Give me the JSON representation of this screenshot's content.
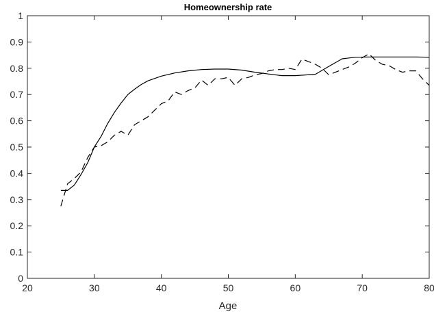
{
  "chart_data": {
    "type": "line",
    "title": "Homeownership rate",
    "xlabel": "Age",
    "ylabel": "",
    "xlim": [
      20,
      80
    ],
    "ylim": [
      0,
      1
    ],
    "xticks": [
      "20",
      "30",
      "40",
      "50",
      "60",
      "70",
      "80"
    ],
    "yticks": [
      "0",
      "0.1",
      "0.2",
      "0.3",
      "0.4",
      "0.5",
      "0.6",
      "0.7",
      "0.8",
      "0.9",
      "1"
    ],
    "grid": false,
    "legend": "none",
    "series": [
      {
        "style": "solid",
        "color": "#000000",
        "x": [
          25,
          26,
          27,
          28,
          29,
          30,
          31,
          32,
          33,
          34,
          35,
          36,
          37,
          38,
          40,
          42,
          44,
          46,
          48,
          50,
          52,
          54,
          56,
          58,
          60,
          63,
          65,
          67,
          69,
          71,
          73,
          75,
          78,
          80
        ],
        "y": [
          0.335,
          0.335,
          0.355,
          0.395,
          0.44,
          0.5,
          0.54,
          0.59,
          0.632,
          0.668,
          0.7,
          0.72,
          0.738,
          0.752,
          0.77,
          0.782,
          0.79,
          0.795,
          0.797,
          0.797,
          0.793,
          0.785,
          0.778,
          0.772,
          0.772,
          0.777,
          0.807,
          0.836,
          0.842,
          0.843,
          0.843,
          0.843,
          0.843,
          0.842
        ]
      },
      {
        "style": "dashed",
        "color": "#000000",
        "x": [
          25,
          26,
          27,
          28,
          29,
          30,
          31,
          32,
          33,
          34,
          35,
          36,
          37,
          38,
          39,
          40,
          41,
          42,
          43,
          44,
          45,
          46,
          47,
          48,
          49,
          50,
          51,
          52,
          53,
          54,
          55,
          56,
          57,
          58,
          59,
          60,
          61,
          62,
          63,
          64,
          65,
          66,
          67,
          68,
          69,
          70,
          71,
          72,
          73,
          74,
          75,
          76,
          77,
          78,
          79,
          80
        ],
        "y": [
          0.275,
          0.36,
          0.38,
          0.405,
          0.46,
          0.5,
          0.505,
          0.52,
          0.545,
          0.56,
          0.545,
          0.585,
          0.6,
          0.615,
          0.64,
          0.665,
          0.675,
          0.71,
          0.7,
          0.715,
          0.725,
          0.755,
          0.735,
          0.76,
          0.76,
          0.765,
          0.735,
          0.76,
          0.765,
          0.775,
          0.78,
          0.79,
          0.795,
          0.795,
          0.8,
          0.795,
          0.835,
          0.825,
          0.815,
          0.8,
          0.775,
          0.785,
          0.795,
          0.805,
          0.82,
          0.84,
          0.855,
          0.83,
          0.815,
          0.81,
          0.795,
          0.785,
          0.79,
          0.79,
          0.76,
          0.735
        ]
      }
    ]
  }
}
